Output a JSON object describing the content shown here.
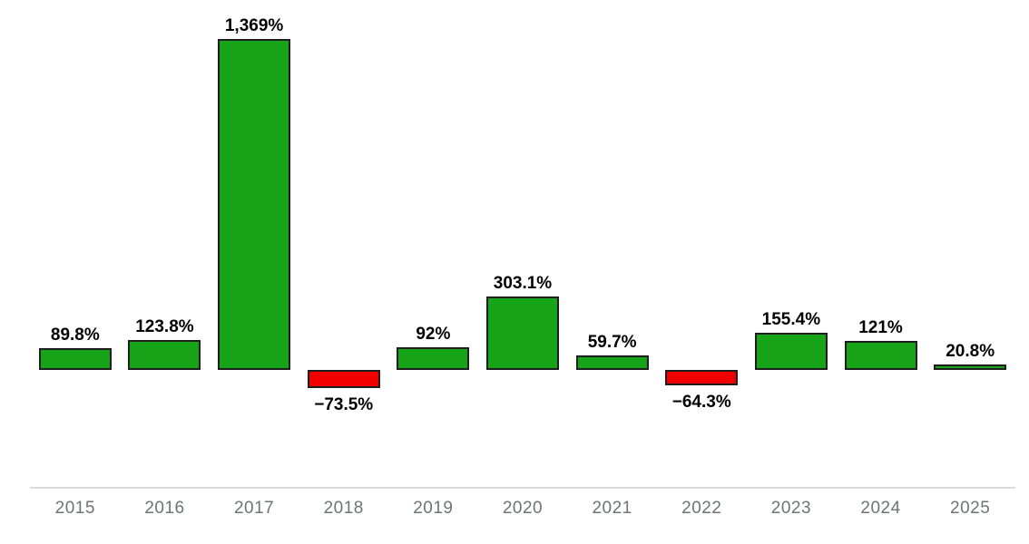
{
  "chart_data": {
    "type": "bar",
    "title": "",
    "xlabel": "",
    "ylabel": "",
    "categories": [
      "2015",
      "2016",
      "2017",
      "2018",
      "2019",
      "2020",
      "2021",
      "2022",
      "2023",
      "2024",
      "2025"
    ],
    "values": [
      89.8,
      123.8,
      1369,
      -73.5,
      92,
      303.1,
      59.7,
      -64.3,
      155.4,
      121,
      20.8
    ],
    "labels": [
      "89.8%",
      "123.8%",
      "1,369%",
      "−73.5%",
      "92%",
      "303.1%",
      "59.7%",
      "−64.3%",
      "155.4%",
      "121%",
      "20.8%"
    ],
    "unit": "%",
    "ylim": [
      -200,
      1450
    ],
    "grid": "off",
    "legend": "none",
    "colors": {
      "positive": "#18a418",
      "negative": "#f20000",
      "bar_border": "#1e1e1e",
      "value_label": "#000000",
      "tick_label": "#6f7377",
      "axis_line": "#d9dcdd",
      "background": "#ffffff"
    }
  }
}
